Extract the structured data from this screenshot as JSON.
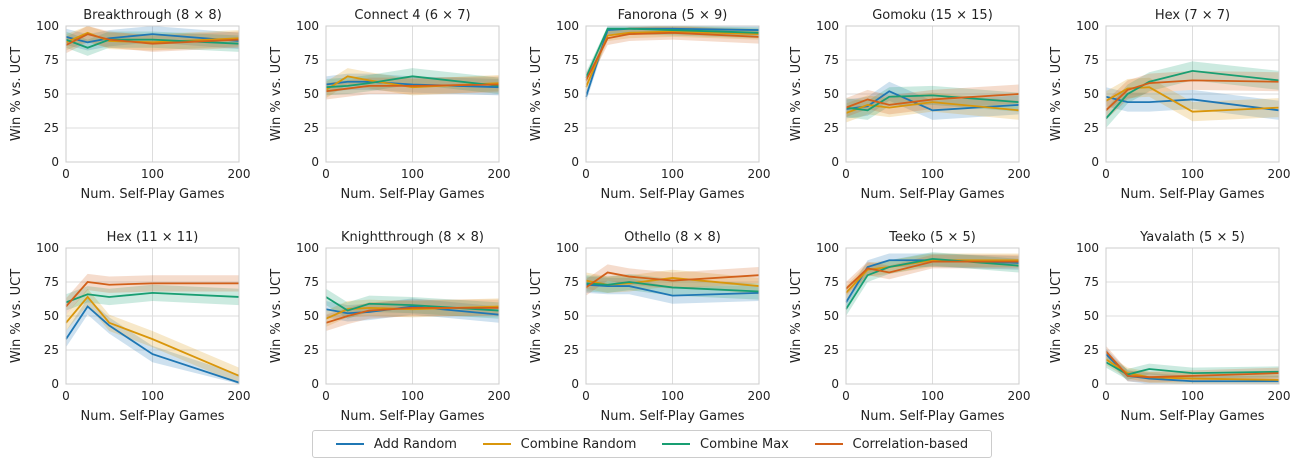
{
  "colors": {
    "Add Random": "#1f77b4",
    "Combine Random": "#d9960b",
    "Combine Max": "#189e72",
    "Correlation-based": "#d2601a"
  },
  "legend": [
    "Add Random",
    "Combine Random",
    "Combine Max",
    "Correlation-based"
  ],
  "chart_data": [
    {
      "type": "line",
      "title": "Breakthrough (8 × 8)",
      "xlabel": "Num. Self-Play Games",
      "ylabel": "Win % vs. UCT",
      "x": [
        0,
        25,
        50,
        100,
        200
      ],
      "xlim": [
        0,
        200
      ],
      "ylim": [
        0,
        100
      ],
      "xticks": [
        0,
        100,
        200
      ],
      "yticks": [
        0,
        25,
        50,
        75,
        100
      ],
      "grid": true,
      "series": [
        {
          "name": "Add Random",
          "values": [
            92,
            88,
            91,
            94,
            89
          ],
          "band": 6
        },
        {
          "name": "Combine Random",
          "values": [
            88,
            95,
            89,
            88,
            91
          ],
          "band": 6
        },
        {
          "name": "Combine Max",
          "values": [
            90,
            84,
            90,
            90,
            87
          ],
          "band": 6
        },
        {
          "name": "Correlation-based",
          "values": [
            86,
            94,
            90,
            87,
            90
          ],
          "band": 6
        }
      ]
    },
    {
      "type": "line",
      "title": "Connect 4 (6 × 7)",
      "xlabel": "Num. Self-Play Games",
      "ylabel": "Win % vs. UCT",
      "x": [
        0,
        25,
        50,
        100,
        200
      ],
      "xlim": [
        0,
        200
      ],
      "ylim": [
        0,
        100
      ],
      "xticks": [
        0,
        100,
        200
      ],
      "yticks": [
        0,
        25,
        50,
        75,
        100
      ],
      "grid": true,
      "series": [
        {
          "name": "Add Random",
          "values": [
            57,
            59,
            59,
            57,
            55
          ],
          "band": 6
        },
        {
          "name": "Combine Random",
          "values": [
            53,
            63,
            60,
            55,
            58
          ],
          "band": 6
        },
        {
          "name": "Combine Max",
          "values": [
            55,
            56,
            58,
            63,
            56
          ],
          "band": 6
        },
        {
          "name": "Correlation-based",
          "values": [
            52,
            54,
            56,
            56,
            57
          ],
          "band": 6
        }
      ]
    },
    {
      "type": "line",
      "title": "Fanorona (5 × 9)",
      "xlabel": "Num. Self-Play Games",
      "ylabel": "Win % vs. UCT",
      "x": [
        0,
        25,
        50,
        100,
        200
      ],
      "xlim": [
        0,
        200
      ],
      "ylim": [
        0,
        100
      ],
      "xticks": [
        0,
        100,
        200
      ],
      "yticks": [
        0,
        25,
        50,
        75,
        100
      ],
      "grid": true,
      "series": [
        {
          "name": "Add Random",
          "values": [
            48,
            97,
            98,
            98,
            97
          ],
          "band": 4
        },
        {
          "name": "Combine Random",
          "values": [
            55,
            93,
            95,
            96,
            94
          ],
          "band": 4
        },
        {
          "name": "Combine Max",
          "values": [
            62,
            98,
            98,
            97,
            95
          ],
          "band": 4
        },
        {
          "name": "Correlation-based",
          "values": [
            60,
            91,
            94,
            95,
            92
          ],
          "band": 5
        }
      ]
    },
    {
      "type": "line",
      "title": "Gomoku (15 × 15)",
      "xlabel": "Num. Self-Play Games",
      "ylabel": "Win % vs. UCT",
      "x": [
        0,
        25,
        50,
        100,
        200
      ],
      "xlim": [
        0,
        200
      ],
      "ylim": [
        0,
        100
      ],
      "xticks": [
        0,
        100,
        200
      ],
      "yticks": [
        0,
        25,
        50,
        75,
        100
      ],
      "grid": true,
      "series": [
        {
          "name": "Add Random",
          "values": [
            39,
            41,
            52,
            38,
            42
          ],
          "band": 7
        },
        {
          "name": "Combine Random",
          "values": [
            36,
            42,
            40,
            44,
            38
          ],
          "band": 7
        },
        {
          "name": "Combine Max",
          "values": [
            40,
            38,
            48,
            49,
            44
          ],
          "band": 7
        },
        {
          "name": "Correlation-based",
          "values": [
            40,
            46,
            42,
            46,
            50
          ],
          "band": 7
        }
      ]
    },
    {
      "type": "line",
      "title": "Hex (7 × 7)",
      "xlabel": "Num. Self-Play Games",
      "ylabel": "Win % vs. UCT",
      "x": [
        0,
        25,
        50,
        100,
        200
      ],
      "xlim": [
        0,
        200
      ],
      "ylim": [
        0,
        100
      ],
      "xticks": [
        0,
        100,
        200
      ],
      "yticks": [
        0,
        25,
        50,
        75,
        100
      ],
      "grid": true,
      "series": [
        {
          "name": "Add Random",
          "values": [
            48,
            44,
            44,
            46,
            38
          ],
          "band": 7
        },
        {
          "name": "Combine Random",
          "values": [
            45,
            54,
            55,
            37,
            40
          ],
          "band": 7
        },
        {
          "name": "Combine Max",
          "values": [
            32,
            50,
            59,
            67,
            60
          ],
          "band": 7
        },
        {
          "name": "Correlation-based",
          "values": [
            38,
            53,
            58,
            60,
            59
          ],
          "band": 7
        }
      ]
    },
    {
      "type": "line",
      "title": "Hex (11 × 11)",
      "xlabel": "Num. Self-Play Games",
      "ylabel": "Win % vs. UCT",
      "x": [
        0,
        25,
        50,
        100,
        200
      ],
      "xlim": [
        0,
        200
      ],
      "ylim": [
        0,
        100
      ],
      "xticks": [
        0,
        100,
        200
      ],
      "yticks": [
        0,
        25,
        50,
        75,
        100
      ],
      "grid": true,
      "series": [
        {
          "name": "Add Random",
          "values": [
            33,
            57,
            43,
            22,
            1
          ],
          "band": 6
        },
        {
          "name": "Combine Random",
          "values": [
            45,
            64,
            45,
            33,
            6
          ],
          "band": 6
        },
        {
          "name": "Combine Max",
          "values": [
            60,
            66,
            64,
            67,
            64
          ],
          "band": 6
        },
        {
          "name": "Correlation-based",
          "values": [
            57,
            75,
            73,
            74,
            74
          ],
          "band": 6
        }
      ]
    },
    {
      "type": "line",
      "title": "Knightthrough (8 × 8)",
      "xlabel": "Num. Self-Play Games",
      "ylabel": "Win % vs. UCT",
      "x": [
        0,
        25,
        50,
        100,
        200
      ],
      "xlim": [
        0,
        200
      ],
      "ylim": [
        0,
        100
      ],
      "xticks": [
        0,
        100,
        200
      ],
      "yticks": [
        0,
        25,
        50,
        75,
        100
      ],
      "grid": true,
      "series": [
        {
          "name": "Add Random",
          "values": [
            55,
            52,
            53,
            57,
            51
          ],
          "band": 6
        },
        {
          "name": "Combine Random",
          "values": [
            48,
            55,
            56,
            55,
            57
          ],
          "band": 6
        },
        {
          "name": "Combine Max",
          "values": [
            64,
            54,
            59,
            58,
            54
          ],
          "band": 6
        },
        {
          "name": "Correlation-based",
          "values": [
            45,
            50,
            54,
            56,
            56
          ],
          "band": 6
        }
      ]
    },
    {
      "type": "line",
      "title": "Othello (8 × 8)",
      "xlabel": "Num. Self-Play Games",
      "ylabel": "Win % vs. UCT",
      "x": [
        0,
        25,
        50,
        100,
        200
      ],
      "xlim": [
        0,
        200
      ],
      "ylim": [
        0,
        100
      ],
      "xticks": [
        0,
        100,
        200
      ],
      "yticks": [
        0,
        25,
        50,
        75,
        100
      ],
      "grid": true,
      "series": [
        {
          "name": "Add Random",
          "values": [
            73,
            72,
            72,
            65,
            67
          ],
          "band": 6
        },
        {
          "name": "Combine Random",
          "values": [
            76,
            73,
            74,
            78,
            72
          ],
          "band": 6
        },
        {
          "name": "Combine Max",
          "values": [
            74,
            73,
            75,
            71,
            68
          ],
          "band": 6
        },
        {
          "name": "Correlation-based",
          "values": [
            71,
            82,
            79,
            76,
            80
          ],
          "band": 6
        }
      ]
    },
    {
      "type": "line",
      "title": "Teeko (5 × 5)",
      "xlabel": "Num. Self-Play Games",
      "ylabel": "Win % vs. UCT",
      "x": [
        0,
        25,
        50,
        100,
        200
      ],
      "xlim": [
        0,
        200
      ],
      "ylim": [
        0,
        100
      ],
      "xticks": [
        0,
        100,
        200
      ],
      "yticks": [
        0,
        25,
        50,
        75,
        100
      ],
      "grid": true,
      "series": [
        {
          "name": "Add Random",
          "values": [
            60,
            86,
            91,
            91,
            89
          ],
          "band": 5
        },
        {
          "name": "Combine Random",
          "values": [
            67,
            84,
            86,
            91,
            91
          ],
          "band": 5
        },
        {
          "name": "Combine Max",
          "values": [
            55,
            80,
            86,
            92,
            87
          ],
          "band": 5
        },
        {
          "name": "Correlation-based",
          "values": [
            70,
            85,
            82,
            90,
            90
          ],
          "band": 5
        }
      ]
    },
    {
      "type": "line",
      "title": "Yavalath (5 × 5)",
      "xlabel": "Num. Self-Play Games",
      "ylabel": "Win % vs. UCT",
      "x": [
        0,
        25,
        50,
        100,
        200
      ],
      "xlim": [
        0,
        200
      ],
      "ylim": [
        0,
        100
      ],
      "xticks": [
        0,
        100,
        200
      ],
      "yticks": [
        0,
        25,
        50,
        75,
        100
      ],
      "grid": true,
      "series": [
        {
          "name": "Add Random",
          "values": [
            22,
            6,
            4,
            2,
            2
          ],
          "band": 4
        },
        {
          "name": "Combine Random",
          "values": [
            18,
            8,
            5,
            4,
            3
          ],
          "band": 4
        },
        {
          "name": "Combine Max",
          "values": [
            16,
            7,
            11,
            8,
            9
          ],
          "band": 4
        },
        {
          "name": "Correlation-based",
          "values": [
            24,
            6,
            5,
            6,
            8
          ],
          "band": 4
        }
      ]
    }
  ]
}
